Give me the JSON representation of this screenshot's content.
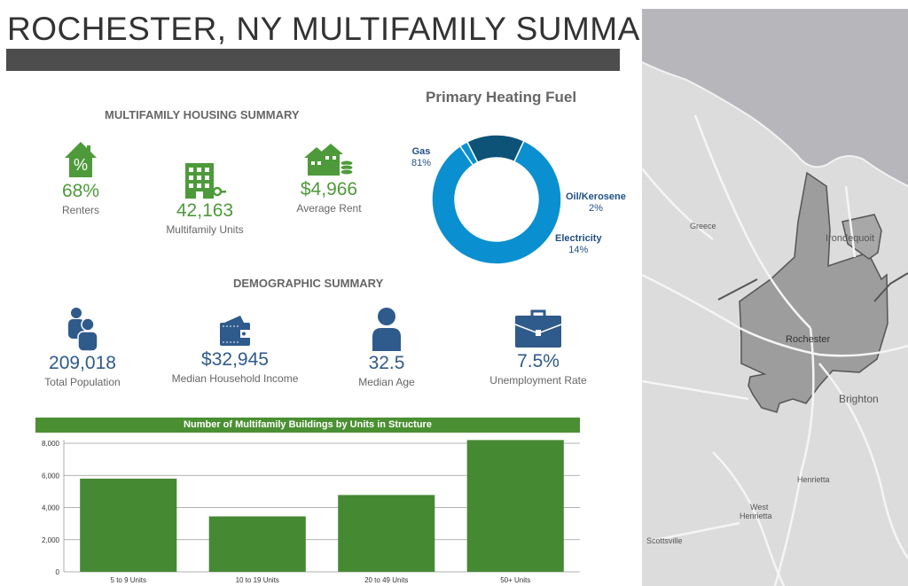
{
  "header": {
    "title": "ROCHESTER, NY MULTIFAMILY SUMMARY"
  },
  "housing": {
    "heading": "MULTIFAMILY HOUSING SUMMARY",
    "stats": [
      {
        "value": "68%",
        "label": "Renters",
        "icon": "house-percent-icon"
      },
      {
        "value": "42,163",
        "label": "Multifamily Units",
        "icon": "apartment-building-icon"
      },
      {
        "value": "$4,966",
        "label": "Average Rent",
        "icon": "houses-coins-icon"
      }
    ]
  },
  "demographic": {
    "heading": "DEMOGRAPHIC SUMMARY",
    "stats": [
      {
        "value": "209,018",
        "label": "Total Population",
        "icon": "people-icon"
      },
      {
        "value": "$32,945",
        "label": "Median Household Income",
        "icon": "wallet-icon"
      },
      {
        "value": "32.5",
        "label": "Median Age",
        "icon": "person-icon"
      },
      {
        "value": "7.5%",
        "label": "Unemployment Rate",
        "icon": "briefcase-icon"
      }
    ]
  },
  "map": {
    "places": [
      "Greece",
      "Irondequoit",
      "Rochester",
      "Brighton",
      "Henrietta",
      "West",
      "Henrietta",
      "Scottsville"
    ]
  },
  "colors": {
    "green": "#4e9a3a",
    "blue": "#2f5a8c",
    "gas": "#0a8fd0",
    "electricity": "#0d5277",
    "oil": "#0a8fd0",
    "bar": "#458a33"
  },
  "chart_data": [
    {
      "type": "pie",
      "title": "Primary Heating Fuel",
      "donut": true,
      "categories": [
        "Gas",
        "Oil/Kerosene",
        "Electricity"
      ],
      "values": [
        81,
        2,
        14
      ],
      "value_labels": [
        "81%",
        "2%",
        "14%"
      ]
    },
    {
      "type": "bar",
      "title": "Number of Multifamily Buildings by Units in Structure",
      "categories": [
        "5 to 9 Units",
        "10 to 19 Units",
        "20 to 49 Units",
        "50+ Units"
      ],
      "values": [
        5800,
        3450,
        4780,
        8200
      ],
      "ylim": [
        0,
        8000
      ],
      "yticks": [
        0,
        2000,
        4000,
        6000,
        8000
      ],
      "ytick_labels": [
        "0",
        "2,000",
        "4,000",
        "6,000",
        "8,000"
      ],
      "grid": true
    }
  ]
}
